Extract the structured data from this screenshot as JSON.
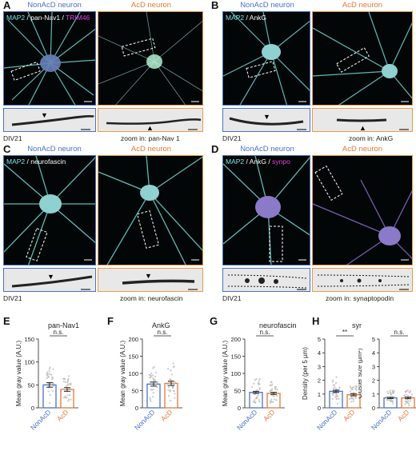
{
  "colors": {
    "nonacd": "#4a72c4",
    "acd": "#e07a3a",
    "cyan": "#7fe6e6",
    "magenta": "#e040e0"
  },
  "panels": {
    "A": {
      "label": "A",
      "left_title": "NonAcD neuron",
      "right_title": "AcD neuron",
      "channel_1": "MAP2",
      "sep_1": " / ",
      "channel_2": "pan-Nav1",
      "sep_2": " / ",
      "channel_3": "TRIM46",
      "div": "DIV21",
      "zoom": "zoom in: pan-Nav 1"
    },
    "B": {
      "label": "B",
      "left_title": "NonAcD neuron",
      "right_title": "AcD neuron",
      "channel_1": "MAP2",
      "sep_1": " / ",
      "channel_2": "AnkG",
      "div": "DIV21",
      "zoom": "zoom in: AnkG"
    },
    "C": {
      "label": "C",
      "left_title": "NonAcD neuron",
      "right_title": "AcD neuron",
      "channel_1": "MAP2",
      "sep_1": " / ",
      "channel_2": "neurofascin",
      "div": "DIV21",
      "zoom": "zoom in: neurofascin"
    },
    "D": {
      "label": "D",
      "left_title": "NonAcD neuron",
      "right_title": "AcD neuron",
      "channel_1": "MAP2",
      "sep_1": " / ",
      "channel_2": "AnkG",
      "sep_2": " / ",
      "channel_3": "synpo",
      "div": "DIV21",
      "zoom": "zoom in: synaptopodin"
    }
  },
  "chart_data": [
    {
      "panel": "E",
      "type": "bar",
      "title": "pan-Nav1",
      "ylabel": "Mean gray value (A.U.)",
      "ylim": [
        0,
        150
      ],
      "yticks": [
        0,
        50,
        100,
        150
      ],
      "categories": [
        "NonAcD",
        "AcD"
      ],
      "values": [
        50,
        40
      ],
      "errors": [
        5,
        4
      ],
      "significance": "n.s."
    },
    {
      "panel": "F",
      "type": "bar",
      "title": "AnkG",
      "ylabel": "Mean gray value (A.U.)",
      "ylim": [
        0,
        200
      ],
      "yticks": [
        0,
        50,
        100,
        150,
        200
      ],
      "categories": [
        "NonAcD",
        "AcD"
      ],
      "values": [
        69,
        71
      ],
      "errors": [
        6,
        6
      ],
      "significance": "n.s."
    },
    {
      "panel": "G",
      "type": "bar",
      "title": "neurofascin",
      "ylabel": "Mean gray value (A.U.)",
      "ylim": [
        0,
        200
      ],
      "yticks": [
        0,
        50,
        100,
        150,
        200
      ],
      "categories": [
        "NonAcD",
        "AcD"
      ],
      "values": [
        45,
        42
      ],
      "errors": [
        3,
        3
      ],
      "significance": "n.s."
    },
    {
      "panel": "H",
      "type": "bar",
      "title": "synpo",
      "ylabel": "Density (per 5 µm)",
      "ylim": [
        0,
        5
      ],
      "yticks": [
        0,
        1,
        2,
        3,
        4,
        5
      ],
      "categories": [
        "NonAcD",
        "AcD"
      ],
      "values": [
        1.2,
        0.95
      ],
      "errors": [
        0.08,
        0.08
      ],
      "significance": "**"
    },
    {
      "panel": "H2",
      "type": "bar",
      "title": "",
      "ylabel": "Cluster size (µm²)",
      "ylim": [
        0,
        5
      ],
      "yticks": [
        0,
        1,
        2,
        3,
        4,
        5
      ],
      "categories": [
        "NonAcD",
        "AcD"
      ],
      "values": [
        0.72,
        0.72
      ],
      "errors": [
        0.05,
        0.06
      ],
      "significance": "n.s."
    }
  ]
}
